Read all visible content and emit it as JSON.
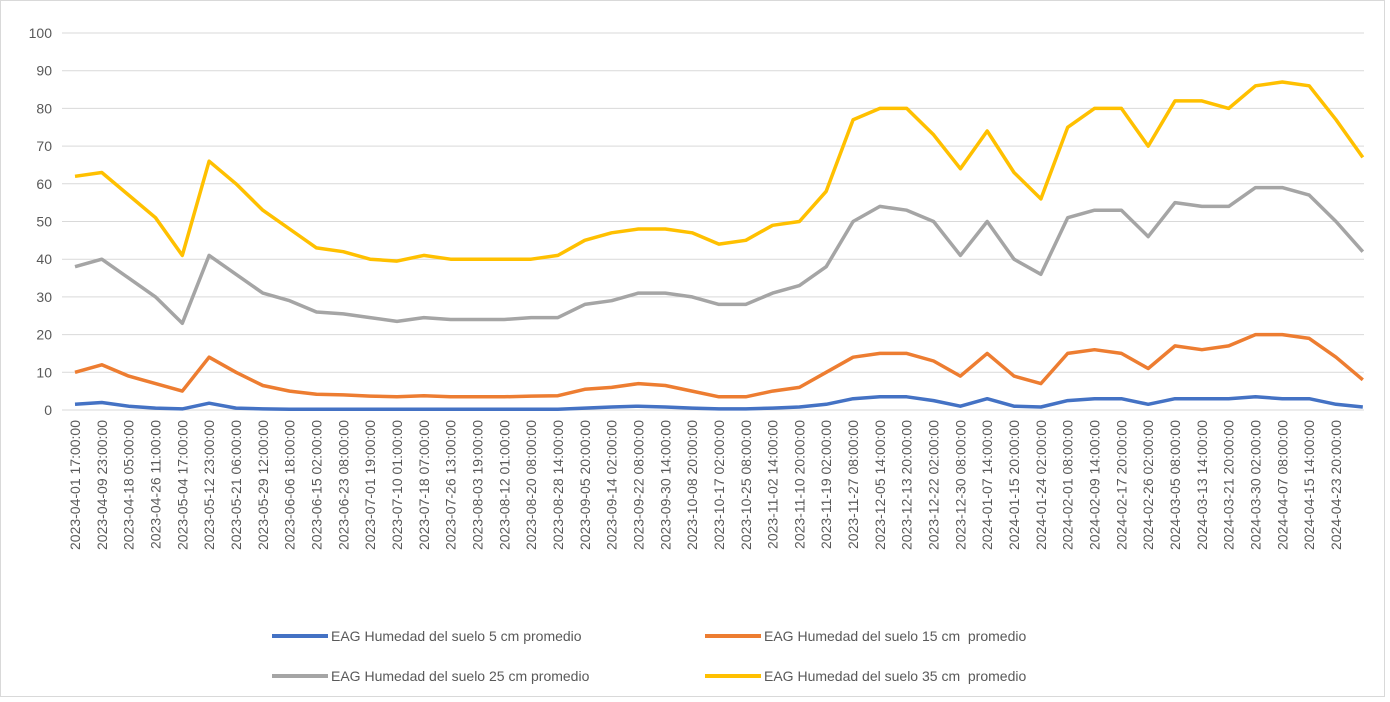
{
  "chart_data": {
    "type": "line",
    "categories": [
      "2023-04-01 17:00:00",
      "2023-04-09 23:00:00",
      "2023-04-18 05:00:00",
      "2023-04-26 11:00:00",
      "2023-05-04 17:00:00",
      "2023-05-12 23:00:00",
      "2023-05-21 06:00:00",
      "2023-05-29 12:00:00",
      "2023-06-06 18:00:00",
      "2023-06-15 02:00:00",
      "2023-06-23 08:00:00",
      "2023-07-01 19:00:00",
      "2023-07-10 01:00:00",
      "2023-07-18 07:00:00",
      "2023-07-26 13:00:00",
      "2023-08-03 19:00:00",
      "2023-08-12 01:00:00",
      "2023-08-20 08:00:00",
      "2023-08-28 14:00:00",
      "2023-09-05 20:00:00",
      "2023-09-14 02:00:00",
      "2023-09-22 08:00:00",
      "2023-09-30 14:00:00",
      "2023-10-08 20:00:00",
      "2023-10-17 02:00:00",
      "2023-10-25 08:00:00",
      "2023-11-02 14:00:00",
      "2023-11-10 20:00:00",
      "2023-11-19 02:00:00",
      "2023-11-27 08:00:00",
      "2023-12-05 14:00:00",
      "2023-12-13 20:00:00",
      "2023-12-22 02:00:00",
      "2023-12-30 08:00:00",
      "2024-01-07 14:00:00",
      "2024-01-15 20:00:00",
      "2024-01-24 02:00:00",
      "2024-02-01 08:00:00",
      "2024-02-09 14:00:00",
      "2024-02-17 20:00:00",
      "2024-02-26 02:00:00",
      "2024-03-05 08:00:00",
      "2024-03-13 14:00:00",
      "2024-03-21 20:00:00",
      "2024-03-30 02:00:00",
      "2024-04-07 08:00:00",
      "2024-04-15 14:00:00",
      "2024-04-23 20:00:00",
      null
    ],
    "series": [
      {
        "name": "EAG Humedad del suelo 5 cm promedio",
        "color": "#4472c4",
        "values": [
          1.5,
          2,
          1,
          0.5,
          0.3,
          1.8,
          0.5,
          0.3,
          0.2,
          0.2,
          0.2,
          0.2,
          0.2,
          0.2,
          0.2,
          0.2,
          0.2,
          0.2,
          0.2,
          0.5,
          0.8,
          1,
          0.8,
          0.5,
          0.3,
          0.3,
          0.5,
          0.8,
          1.5,
          3,
          3.5,
          3.5,
          2.5,
          1,
          3,
          1,
          0.8,
          2.5,
          3,
          3,
          1.5,
          3,
          3,
          3,
          3.5,
          3,
          3,
          1.5,
          0.8
        ]
      },
      {
        "name": "EAG Humedad del suelo 15 cm  promedio",
        "color": "#ed7d31",
        "values": [
          10,
          12,
          9,
          7,
          5,
          14,
          10,
          6.5,
          5,
          4.2,
          4,
          3.7,
          3.5,
          3.8,
          3.5,
          3.5,
          3.5,
          3.7,
          3.8,
          5.5,
          6,
          7,
          6.5,
          5,
          3.5,
          3.5,
          5,
          6,
          10,
          14,
          15,
          15,
          13,
          9,
          15,
          9,
          7,
          15,
          16,
          15,
          11,
          17,
          16,
          17,
          20,
          20,
          19,
          14,
          8
        ]
      },
      {
        "name": "EAG Humedad del suelo 25 cm promedio",
        "color": "#a5a5a5",
        "values": [
          38,
          40,
          35,
          30,
          23,
          41,
          36,
          31,
          29,
          26,
          25.5,
          24.5,
          23.5,
          24.5,
          24,
          24,
          24,
          24.5,
          24.5,
          28,
          29,
          31,
          31,
          30,
          28,
          28,
          31,
          33,
          38,
          50,
          54,
          53,
          50,
          41,
          50,
          40,
          36,
          51,
          53,
          53,
          46,
          55,
          54,
          54,
          59,
          59,
          57,
          50,
          42
        ]
      },
      {
        "name": "EAG Humedad del suelo 35 cm  promedio",
        "color": "#ffc000",
        "values": [
          62,
          63,
          57,
          51,
          41,
          66,
          60,
          53,
          48,
          43,
          42,
          40,
          39.5,
          41,
          40,
          40,
          40,
          40,
          41,
          45,
          47,
          48,
          48,
          47,
          44,
          45,
          49,
          50,
          58,
          77,
          80,
          80,
          73,
          64,
          74,
          63,
          56,
          75,
          80,
          80,
          70,
          82,
          82,
          80,
          86,
          87,
          86,
          77,
          67
        ]
      }
    ],
    "ylim": [
      0,
      100
    ],
    "yticks": [
      0,
      10,
      20,
      30,
      40,
      50,
      60,
      70,
      80,
      90,
      100
    ],
    "grid": true
  }
}
